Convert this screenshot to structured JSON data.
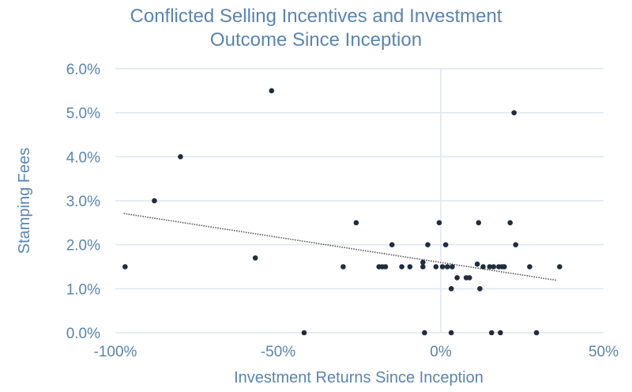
{
  "chart_data": {
    "type": "scatter",
    "title_lines": [
      "Conflicted Selling Incentives and Investment",
      "Outcome Since Inception"
    ],
    "xlabel": "Investment Returns Since Inception",
    "ylabel": "Stamping Fees",
    "xlim": [
      -100,
      50
    ],
    "ylim": [
      0,
      6
    ],
    "x_ticks": [
      -100,
      -50,
      0,
      50
    ],
    "x_tick_labels": [
      "-100%",
      "-50%",
      "0%",
      "50%"
    ],
    "y_ticks": [
      0,
      1,
      2,
      3,
      4,
      5,
      6
    ],
    "y_tick_labels": [
      "0.0%",
      "1.0%",
      "2.0%",
      "3.0%",
      "4.0%",
      "5.0%",
      "6.0%"
    ],
    "grid": "horizontal",
    "legend": "none",
    "colors": {
      "text": "#5b84ad",
      "point": "#1f2d3d",
      "grid": "#dde6ee",
      "trend": "#555555"
    },
    "points": [
      {
        "x": -97,
        "y": 1.5
      },
      {
        "x": -88,
        "y": 3.0
      },
      {
        "x": -80,
        "y": 4.0
      },
      {
        "x": -57,
        "y": 1.7
      },
      {
        "x": -52,
        "y": 5.5
      },
      {
        "x": -42,
        "y": 0.0
      },
      {
        "x": -30,
        "y": 1.5
      },
      {
        "x": -26,
        "y": 2.5
      },
      {
        "x": -19,
        "y": 1.5
      },
      {
        "x": -18,
        "y": 1.5
      },
      {
        "x": -17,
        "y": 1.5
      },
      {
        "x": -15,
        "y": 2.0
      },
      {
        "x": -12,
        "y": 1.5
      },
      {
        "x": -9.5,
        "y": 1.5
      },
      {
        "x": -5.5,
        "y": 1.6
      },
      {
        "x": -5.5,
        "y": 1.5
      },
      {
        "x": -5,
        "y": 0.0
      },
      {
        "x": -4,
        "y": 2.0
      },
      {
        "x": -1.5,
        "y": 1.5
      },
      {
        "x": -0.5,
        "y": 2.5
      },
      {
        "x": 0.5,
        "y": 1.5
      },
      {
        "x": 1.5,
        "y": 2.0
      },
      {
        "x": 2,
        "y": 1.5
      },
      {
        "x": 3.2,
        "y": 1.0
      },
      {
        "x": 3.2,
        "y": 0.0
      },
      {
        "x": 3.5,
        "y": 1.5
      },
      {
        "x": 5,
        "y": 1.25
      },
      {
        "x": 7.8,
        "y": 1.25
      },
      {
        "x": 8.8,
        "y": 1.25
      },
      {
        "x": 11.2,
        "y": 1.56
      },
      {
        "x": 11.6,
        "y": 2.5
      },
      {
        "x": 12,
        "y": 1.0
      },
      {
        "x": 13,
        "y": 1.5
      },
      {
        "x": 15,
        "y": 1.5
      },
      {
        "x": 15.6,
        "y": 0.0
      },
      {
        "x": 16.2,
        "y": 1.5
      },
      {
        "x": 17.8,
        "y": 1.5
      },
      {
        "x": 18.3,
        "y": 0.0
      },
      {
        "x": 18.8,
        "y": 1.5
      },
      {
        "x": 19.5,
        "y": 1.5
      },
      {
        "x": 21.3,
        "y": 2.5
      },
      {
        "x": 22.5,
        "y": 5.0
      },
      {
        "x": 23,
        "y": 2.0
      },
      {
        "x": 27.3,
        "y": 1.5
      },
      {
        "x": 29.4,
        "y": 0.0
      },
      {
        "x": 36.5,
        "y": 1.5
      }
    ],
    "trendline": {
      "type": "linear",
      "x": [
        -97.4,
        35.7
      ],
      "y": [
        2.71,
        1.19
      ]
    }
  }
}
